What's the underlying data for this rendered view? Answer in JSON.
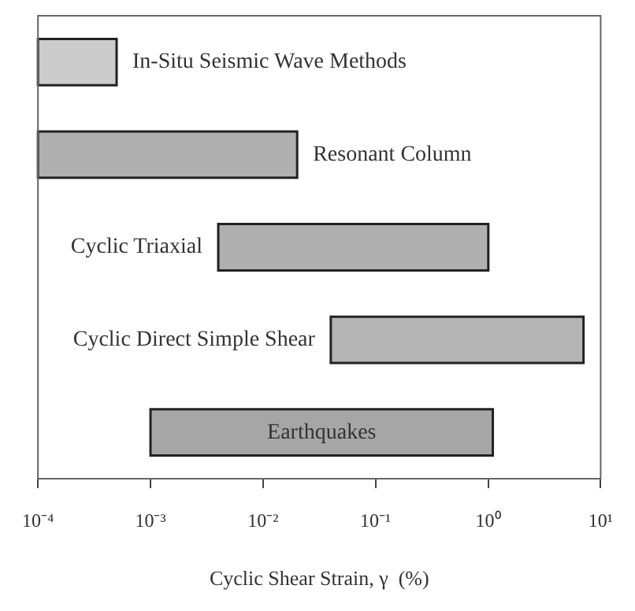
{
  "chart_data": {
    "type": "bar",
    "orientation": "horizontal",
    "log": "x",
    "xlabel": "Cyclic Shear Strain, γ  (%)",
    "categories": [
      "In-Situ Seismic Wave Methods",
      "Resonant Column",
      "Cyclic Triaxial",
      "Cyclic Direct Simple Shear",
      "Earthquakes"
    ],
    "base": [
      0.0001,
      0.0001,
      0.004,
      0.04,
      0.001
    ],
    "values": [
      0.0004,
      0.02,
      1,
      7,
      1.1
    ],
    "colors": [
      "#cccccc",
      "#b0b0b0",
      "#b0b0b0",
      "#b4b4b4",
      "#a6a6a6"
    ],
    "xlim": [
      0.0001,
      10
    ],
    "xticks": [
      {
        "value": 0.0001,
        "label": "10⁻⁴"
      },
      {
        "value": 0.001,
        "label": "10⁻³"
      },
      {
        "value": 0.01,
        "label": "10⁻²"
      },
      {
        "value": 0.1,
        "label": "10⁻¹"
      },
      {
        "value": 1,
        "label": "10⁰"
      },
      {
        "value": 10,
        "label": "10¹"
      }
    ],
    "grid": false,
    "legend": false
  }
}
